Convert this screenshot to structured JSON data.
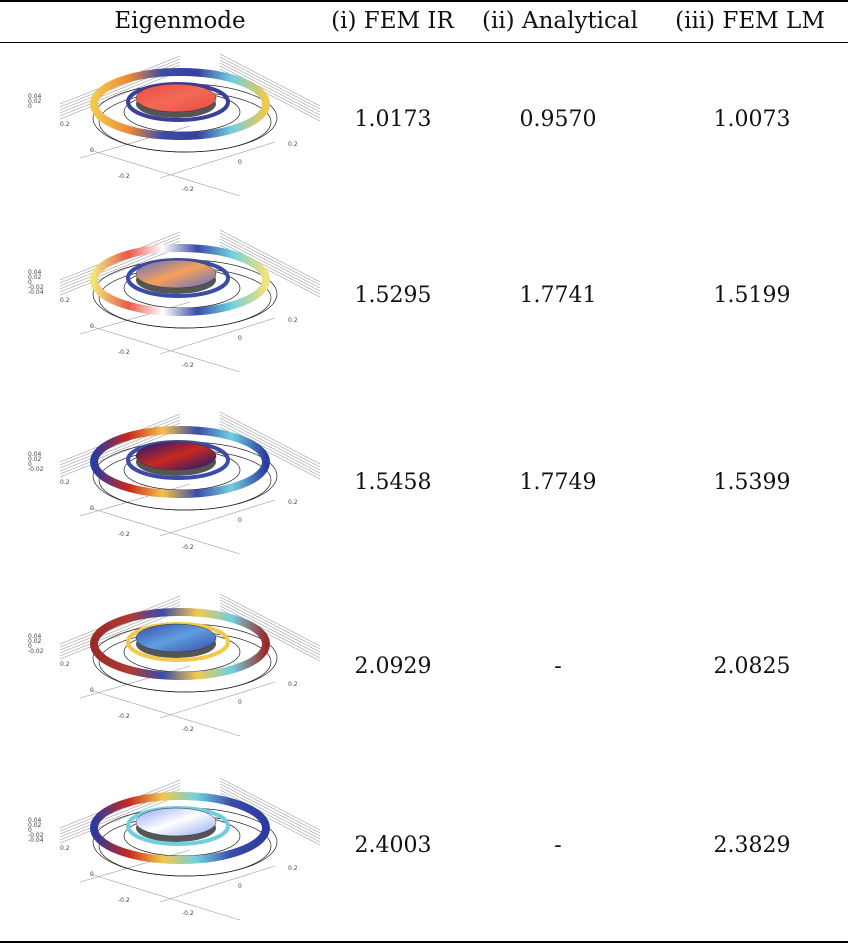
{
  "table": {
    "headers": [
      "Eigenmode",
      "(i) FEM IR",
      "(ii) Analytical",
      "(iii) FEM LM"
    ],
    "rows": [
      {
        "fem_ir": "1.0173",
        "analytical": "0.9570",
        "fem_lm": "1.0073",
        "thumb": {
          "z_ticks": [
            "0.04",
            "0.02",
            "0"
          ],
          "x_ticks": [
            "0.2",
            "0",
            "-0.2"
          ],
          "y_ticks": [
            "0.2",
            "0",
            "-0.2"
          ],
          "disk_color": "#e84a45",
          "disk_color2": "#f36a55",
          "ring_colors": [
            "#f2c94c",
            "#f08a35",
            "#3b4ca8",
            "#3a3f99",
            "#6fcfe0",
            "#f2c94c"
          ]
        }
      },
      {
        "fem_ir": "1.5295",
        "analytical": "1.7741",
        "fem_lm": "1.5199",
        "thumb": {
          "z_ticks": [
            "0.04",
            "0.02",
            "0",
            "-0.02",
            "-0.04"
          ],
          "x_ticks": [
            "0.2",
            "0",
            "-0.2"
          ],
          "y_ticks": [
            "0.2",
            "0",
            "-0.2"
          ],
          "disk_color": "#5a6fc9",
          "disk_color2": "#f5a05a",
          "ring_colors": [
            "#f2e27a",
            "#e85a4a",
            "#ffffff",
            "#3b4ca8",
            "#6fcfe0",
            "#f2e27a"
          ]
        }
      },
      {
        "fem_ir": "1.5458",
        "analytical": "1.7749",
        "fem_lm": "1.5399",
        "thumb": {
          "z_ticks": [
            "0.04",
            "0.02",
            "0",
            "-0.02"
          ],
          "x_ticks": [
            "0.2",
            "0",
            "-0.2"
          ],
          "y_ticks": [
            "0.2",
            "0",
            "-0.2"
          ],
          "disk_color": "#141a7a",
          "disk_color2": "#c8281e",
          "ring_colors": [
            "#2b3a9e",
            "#c8281e",
            "#f5c04a",
            "#3b4ca8",
            "#6fcfe0",
            "#2b3a9e"
          ]
        }
      },
      {
        "fem_ir": "2.0929",
        "analytical": "-",
        "fem_lm": "2.0825",
        "thumb": {
          "z_ticks": [
            "0.04",
            "0.02",
            "0",
            "-0.02"
          ],
          "x_ticks": [
            "0.2",
            "0",
            "-0.2"
          ],
          "y_ticks": [
            "0.2",
            "0",
            "-0.2"
          ],
          "disk_color": "#3a4aa8",
          "disk_color2": "#5f9fe0",
          "ring_colors": [
            "#9a2a2a",
            "#b03a35",
            "#3b4ca8",
            "#f2c94c",
            "#6fcfe0",
            "#9a2a2a"
          ]
        }
      },
      {
        "fem_ir": "2.4003",
        "analytical": "-",
        "fem_lm": "2.3829",
        "thumb": {
          "z_ticks": [
            "0.04",
            "0.02",
            "0",
            "-0.02",
            "-0.04"
          ],
          "x_ticks": [
            "0.2",
            "0",
            "-0.2"
          ],
          "y_ticks": [
            "0.2",
            "0",
            "-0.2"
          ],
          "disk_color": "#8fa8f0",
          "disk_color2": "#ffffff",
          "ring_colors": [
            "#2b3a9e",
            "#c8281e",
            "#f2c94c",
            "#6fcfe0",
            "#3b4ca8",
            "#2b3a9e"
          ]
        }
      }
    ]
  }
}
